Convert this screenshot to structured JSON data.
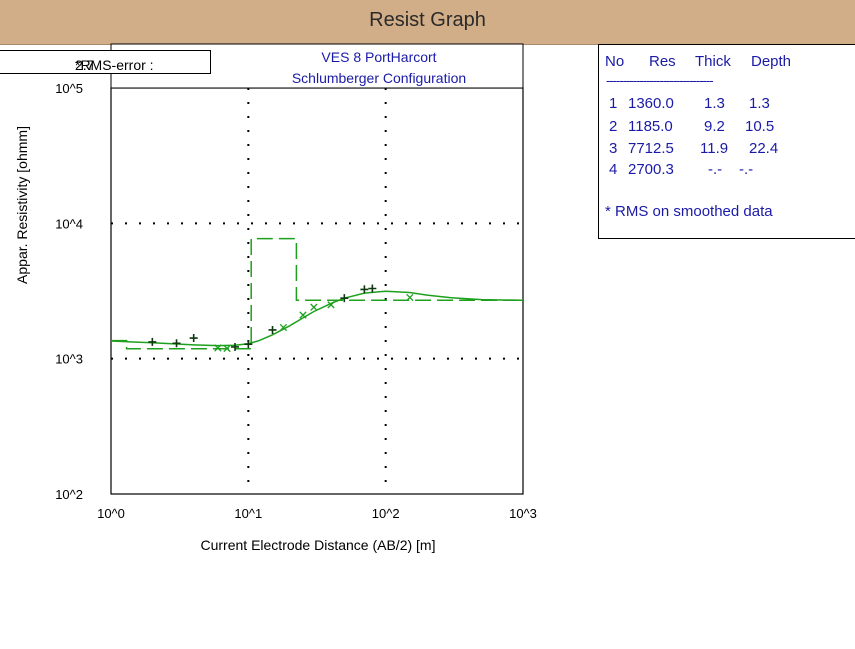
{
  "window": {
    "title": "Resist Graph"
  },
  "rms": {
    "label": "*RMS-error :",
    "value": "2.7"
  },
  "chart_data": {
    "type": "line",
    "title": "VES 8 PortHarcort",
    "subtitle": "Schlumberger Configuration",
    "xlabel": "Current Electrode Distance (AB/2) [m]",
    "ylabel": "Appar. Resistivity [ohmm]",
    "xscale": "log",
    "yscale": "log",
    "xlim": [
      1,
      1000
    ],
    "ylim": [
      100,
      100000
    ],
    "x_ticks": [
      "10^0",
      "10^1",
      "10^2",
      "10^3"
    ],
    "y_ticks": [
      "10^2",
      "10^3",
      "10^4",
      "10^5"
    ],
    "grid": true,
    "series": [
      {
        "name": "",
        "style": "plus",
        "x": [
          2,
          3,
          4,
          8,
          10,
          15,
          50,
          70,
          80
        ],
        "y": [
          1330,
          1300,
          1420,
          1220,
          1280,
          1630,
          2800,
          3250,
          3300
        ]
      },
      {
        "name": "",
        "style": "cross",
        "x": [
          6,
          7,
          18,
          25,
          30,
          40,
          150
        ],
        "y": [
          1200,
          1190,
          1700,
          2100,
          2400,
          2500,
          2830
        ]
      },
      {
        "name": "",
        "style": "solid",
        "x": [
          1,
          2,
          4,
          6,
          8,
          10,
          12,
          15,
          20,
          25,
          30,
          40,
          50,
          70,
          100,
          150,
          200,
          300,
          500,
          1000
        ],
        "y": [
          1350,
          1310,
          1265,
          1250,
          1255,
          1290,
          1360,
          1500,
          1750,
          2000,
          2230,
          2560,
          2800,
          3050,
          3150,
          3080,
          2950,
          2820,
          2730,
          2700
        ]
      },
      {
        "name": "",
        "style": "dashed",
        "x": [
          1,
          1.3,
          1.3,
          10.5,
          10.5,
          22.4,
          22.4,
          1000
        ],
        "y": [
          1360,
          1360,
          1185,
          1185,
          7712.5,
          7712.5,
          2700.3,
          2700.3
        ]
      }
    ]
  },
  "layers": {
    "headers": [
      "No",
      "Res",
      "Thick",
      "Depth"
    ],
    "separator": "--------------------------------",
    "rows": [
      [
        "1",
        "1360.0",
        "1.3",
        "1.3"
      ],
      [
        "2",
        "1185.0",
        "9.2",
        "10.5"
      ],
      [
        "3",
        "7712.5",
        "11.9",
        "22.4"
      ],
      [
        "4",
        "2700.3",
        "-.-",
        "-.-"
      ]
    ],
    "note": "* RMS on smoothed data"
  },
  "colors": {
    "titlebar": "#d2ae88",
    "curve": "#1ea01e",
    "markers": "#103810",
    "panel_text": "#1a1aa8"
  }
}
